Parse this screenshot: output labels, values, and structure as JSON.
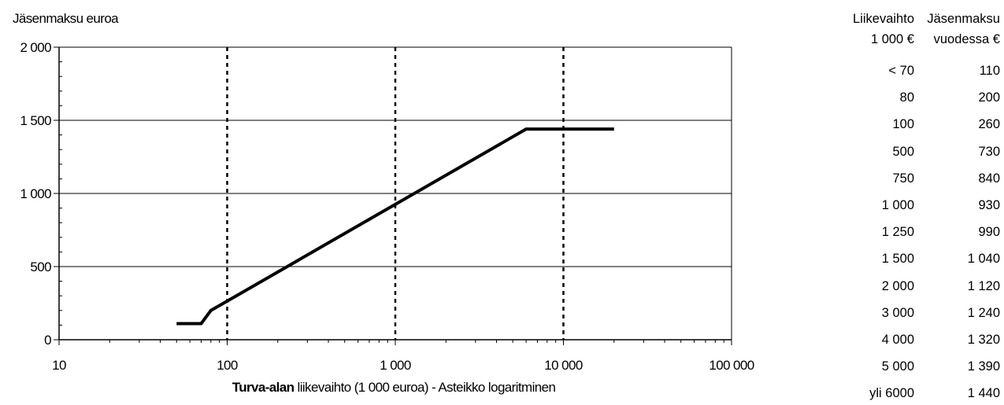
{
  "chart_data": {
    "type": "line",
    "ylabel": "Jäsenmaksu euroa",
    "xlabel_bold": "Turva-alan",
    "xlabel_rest": " liikevaihto (1 000 euroa) - Asteikko logaritminen",
    "x_scale": "log",
    "xlim": [
      10,
      100000
    ],
    "ylim": [
      0,
      2000
    ],
    "x_ticks": [
      10,
      100,
      1000,
      10000,
      100000
    ],
    "x_tick_labels": [
      "10",
      "100",
      "1 000",
      "10 000",
      "100 000"
    ],
    "y_ticks": [
      0,
      500,
      1000,
      1500,
      2000
    ],
    "y_tick_labels": [
      "0",
      "500",
      "1 000",
      "1 500",
      "2 000"
    ],
    "grid": "horizontal solid, vertical dotted at decades",
    "series": [
      {
        "color": "#000000",
        "x": [
          50,
          70,
          80,
          6000,
          20000
        ],
        "y": [
          110,
          110,
          200,
          1440,
          1440
        ]
      }
    ]
  },
  "fee_table": {
    "header_col1": [
      "Liikevaihto",
      "1 000 €"
    ],
    "header_col2": [
      "Jäsenmaksu",
      "vuodessa €"
    ],
    "rows": [
      [
        "< 70",
        "110"
      ],
      [
        "80",
        "200"
      ],
      [
        "100",
        "260"
      ],
      [
        "500",
        "730"
      ],
      [
        "750",
        "840"
      ],
      [
        "1 000",
        "930"
      ],
      [
        "1 250",
        "990"
      ],
      [
        "1 500",
        "1 040"
      ],
      [
        "2 000",
        "1 120"
      ],
      [
        "3 000",
        "1 240"
      ],
      [
        "4 000",
        "1 320"
      ],
      [
        "5 000",
        "1 390"
      ],
      [
        "yli 6000",
        "1 440"
      ]
    ]
  }
}
